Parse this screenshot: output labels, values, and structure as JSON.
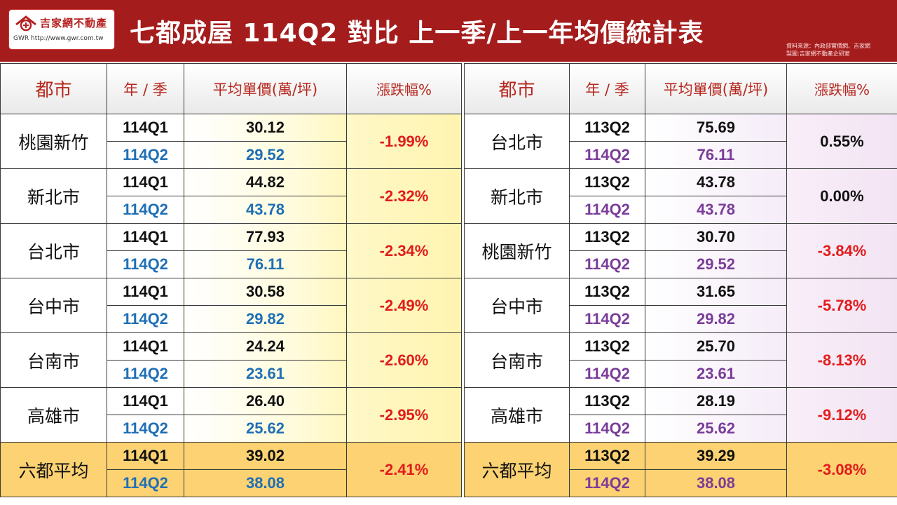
{
  "header": {
    "logo_text": "吉家網不動產",
    "logo_url": "GWR http://www.gwr.com.tw",
    "title": "七都成屋  114Q2 對比 上一季/上一年均價統計表",
    "source_line1": "資料來源：內政部實價網、吉家網",
    "source_line2": "製圖:吉家網不動產企研室"
  },
  "columns": {
    "city": "都市",
    "quarter": "年 / 季",
    "price": "平均單價(萬/坪)",
    "change": "漲跌幅%"
  },
  "left_table": [
    {
      "city": "桃園新竹",
      "q1": "114Q1",
      "p1": "30.12",
      "q2": "114Q2",
      "p2": "29.52",
      "change": "-1.99%"
    },
    {
      "city": "新北市",
      "q1": "114Q1",
      "p1": "44.82",
      "q2": "114Q2",
      "p2": "43.78",
      "change": "-2.32%"
    },
    {
      "city": "台北市",
      "q1": "114Q1",
      "p1": "77.93",
      "q2": "114Q2",
      "p2": "76.11",
      "change": "-2.34%"
    },
    {
      "city": "台中市",
      "q1": "114Q1",
      "p1": "30.58",
      "q2": "114Q2",
      "p2": "29.82",
      "change": "-2.49%"
    },
    {
      "city": "台南市",
      "q1": "114Q1",
      "p1": "24.24",
      "q2": "114Q2",
      "p2": "23.61",
      "change": "-2.60%"
    },
    {
      "city": "高雄市",
      "q1": "114Q1",
      "p1": "26.40",
      "q2": "114Q2",
      "p2": "25.62",
      "change": "-2.95%"
    },
    {
      "city": "六都平均",
      "q1": "114Q1",
      "p1": "39.02",
      "q2": "114Q2",
      "p2": "38.08",
      "change": "-2.41%"
    }
  ],
  "right_table": [
    {
      "city": "台北市",
      "q1": "113Q2",
      "p1": "75.69",
      "q2": "114Q2",
      "p2": "76.11",
      "change": "0.55%"
    },
    {
      "city": "新北市",
      "q1": "113Q2",
      "p1": "43.78",
      "q2": "114Q2",
      "p2": "43.78",
      "change": "0.00%"
    },
    {
      "city": "桃園新竹",
      "q1": "113Q2",
      "p1": "30.70",
      "q2": "114Q2",
      "p2": "29.52",
      "change": "-3.84%"
    },
    {
      "city": "台中市",
      "q1": "113Q2",
      "p1": "31.65",
      "q2": "114Q2",
      "p2": "29.82",
      "change": "-5.78%"
    },
    {
      "city": "台南市",
      "q1": "113Q2",
      "p1": "25.70",
      "q2": "114Q2",
      "p2": "23.61",
      "change": "-8.13%"
    },
    {
      "city": "高雄市",
      "q1": "113Q2",
      "p1": "28.19",
      "q2": "114Q2",
      "p2": "25.62",
      "change": "-9.12%"
    },
    {
      "city": "六都平均",
      "q1": "113Q2",
      "p1": "39.29",
      "q2": "114Q2",
      "p2": "38.08",
      "change": "-3.08%"
    }
  ],
  "colors": {
    "header_bg": "#a51c1c",
    "negative": "#e21c1c",
    "left_q2": "#1f6fb5",
    "right_q2": "#7a3c99",
    "average_row": "#fcd272"
  },
  "icons": [
    "logo-house-icon"
  ]
}
